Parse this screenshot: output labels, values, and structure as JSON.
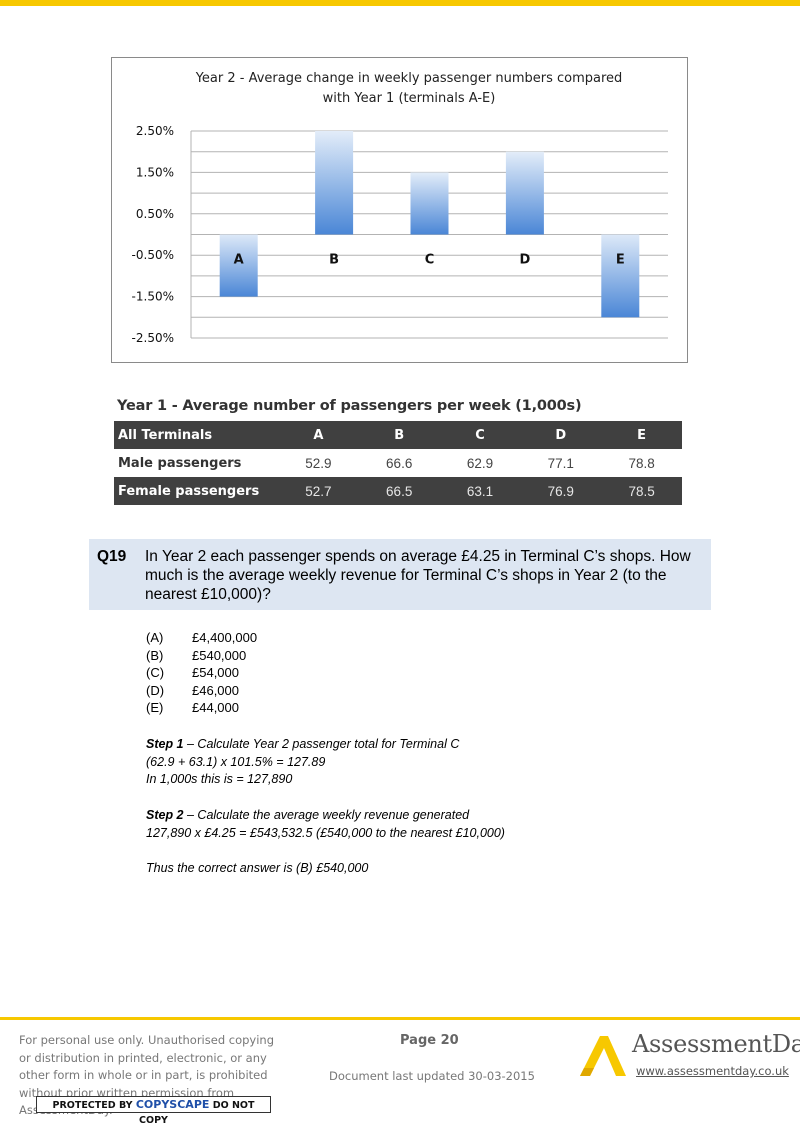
{
  "chart_data": {
    "type": "bar",
    "title_line1": "Year 2 - Average change in weekly passenger numbers compared",
    "title_line2": "with Year 1 (terminals A-E)",
    "categories": [
      "A",
      "B",
      "C",
      "D",
      "E"
    ],
    "values": [
      -1.5,
      2.5,
      1.5,
      2.0,
      -2.0
    ],
    "yticks": [
      "2.50%",
      "1.50%",
      "0.50%",
      "-0.50%",
      "-1.50%",
      "-2.50%"
    ],
    "ylim": [
      -2.5,
      2.5
    ],
    "grid": true,
    "colors": {
      "bar": "#4a86d6",
      "bar_light": "#dde9f8"
    }
  },
  "table": {
    "title": "Year 1 - Average number of passengers per week (1,000s)",
    "header": [
      "All Terminals",
      "A",
      "B",
      "C",
      "D",
      "E"
    ],
    "rows": [
      [
        "Male passengers",
        "52.9",
        "66.6",
        "62.9",
        "77.1",
        "78.8"
      ],
      [
        "Female passengers",
        "52.7",
        "66.5",
        "63.1",
        "76.9",
        "78.5"
      ]
    ]
  },
  "question": {
    "number": "Q19",
    "text": "In Year 2 each passenger spends on average £4.25 in Terminal C’s shops. How much is the average weekly revenue for Terminal C’s shops in Year 2 (to the nearest £10,000)?"
  },
  "options": [
    {
      "letter": "(A)",
      "value": "£4,400,000"
    },
    {
      "letter": "(B)",
      "value": "£540,000"
    },
    {
      "letter": "(C)",
      "value": "£54,000"
    },
    {
      "letter": "(D)",
      "value": "£46,000"
    },
    {
      "letter": "(E)",
      "value": "£44,000"
    }
  ],
  "solution": {
    "step1_label": "Step 1",
    "step1_title": " – Calculate Year 2 passenger total for Terminal C",
    "step1_line1": "(62.9 + 63.1) x 101.5% = 127.89",
    "step1_line2": "In 1,000s this is = 127,890",
    "step2_label": "Step 2",
    "step2_title": " – Calculate the average weekly revenue generated",
    "step2_line1": "127,890 x £4.25 = £543,532.5 (£540,000 to the nearest £10,000)",
    "conclusion": "Thus the correct answer is (B) £540,000"
  },
  "footer": {
    "disclaimer": "For personal use only. Unauthorised copying or distribution in printed, electronic, or any other form in whole or in part, is prohibited without prior written permission from AssessmentDay.",
    "copyscape_pre": "PROTECTED BY ",
    "copyscape_brand": "COPYSCAPE",
    "copyscape_post": " DO NOT COPY",
    "page": "Page 20",
    "updated": "Document last updated 30-03-2015",
    "brand": "AssessmentDay",
    "url": "www.assessmentday.co.uk",
    "accent": "#f7c800"
  }
}
